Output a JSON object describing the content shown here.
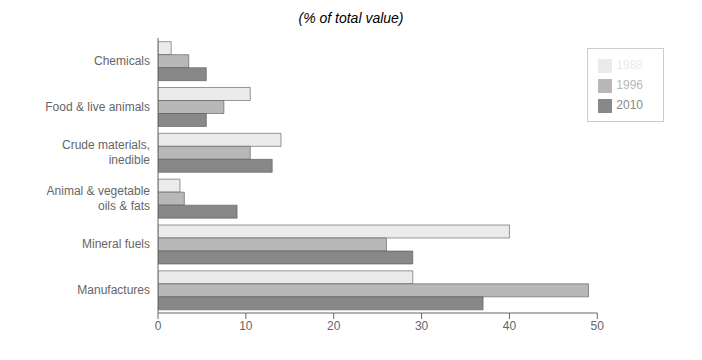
{
  "chart_data": {
    "type": "bar",
    "orientation": "horizontal",
    "title": "(% of total value)",
    "categories": [
      "Manufactures",
      "Mineral fuels",
      "Animal & vegetable\noils & fats",
      "Crude materials,\ninedible",
      "Food & live animals",
      "Chemicals"
    ],
    "series": [
      {
        "name": "1988",
        "color": "#ebebeb",
        "values": [
          29,
          40,
          2.5,
          14,
          10.5,
          1.5
        ]
      },
      {
        "name": "1996",
        "color": "#b8b8b8",
        "values": [
          49,
          26,
          3,
          10.5,
          7.5,
          3.5
        ]
      },
      {
        "name": "2010",
        "color": "#888888",
        "values": [
          37,
          29,
          9,
          13,
          5.5,
          5.5
        ]
      }
    ],
    "xlim": [
      0,
      50
    ],
    "xticks": [
      0,
      10,
      20,
      30,
      40,
      50
    ],
    "grid": false,
    "legend": "upper right"
  }
}
